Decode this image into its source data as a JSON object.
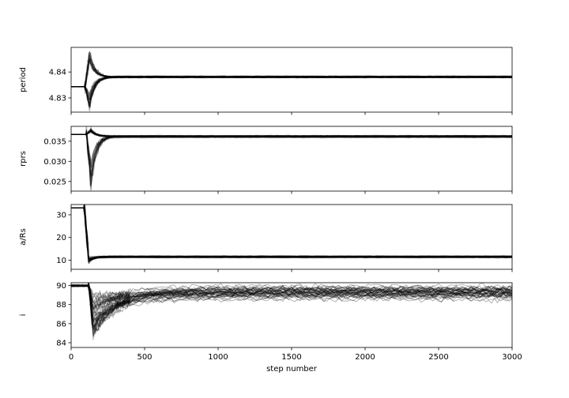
{
  "chart_data": {
    "type": "line",
    "title": "",
    "xlabel": "step number",
    "xlim": [
      0,
      3000
    ],
    "x_ticks": [
      0,
      500,
      1000,
      1500,
      2000,
      2500,
      3000
    ],
    "x_tick_labels": [
      "0",
      "500",
      "1000",
      "1500",
      "2000",
      "2500",
      "3000"
    ],
    "n_walkers": 40,
    "line_color": "#000000",
    "line_alpha": 0.3,
    "grid": false,
    "legend": false,
    "panels": [
      {
        "ylabel": "period",
        "ylim": [
          4.8245,
          4.8495
        ],
        "y_ticks": [
          4.83,
          4.84
        ],
        "y_tick_labels": [
          "4.83",
          "4.84"
        ],
        "initial": 4.8343,
        "final": 4.8381,
        "burn_in_step": 125,
        "burn_in_min": 4.8253,
        "burn_in_max": 4.8488,
        "final_spread": 0.0003
      },
      {
        "ylabel": "rprs",
        "ylim": [
          0.0226,
          0.0387
        ],
        "y_ticks": [
          0.025,
          0.03,
          0.035
        ],
        "y_tick_labels": [
          "0.025",
          "0.030",
          "0.035"
        ],
        "initial": 0.0367,
        "final": 0.0362,
        "burn_in_step": 135,
        "burn_in_min": 0.0238,
        "burn_in_max": 0.0383,
        "final_spread": 0.0002
      },
      {
        "ylabel": "a/Rs",
        "ylim": [
          6.0,
          34.5
        ],
        "y_ticks": [
          10,
          20,
          30
        ],
        "y_tick_labels": [
          "10",
          "20",
          "30"
        ],
        "initial": 33.0,
        "final": 11.5,
        "burn_in_step": 120,
        "burn_in_min": 7.8,
        "burn_in_max": 33.5,
        "final_spread": 0.35
      },
      {
        "ylabel": "i",
        "ylim": [
          83.5,
          90.3
        ],
        "y_ticks": [
          84,
          86,
          88,
          90
        ],
        "y_tick_labels": [
          "84",
          "86",
          "88",
          "90"
        ],
        "initial": 90.0,
        "final": 89.2,
        "burn_in_step": 150,
        "burn_in_min": 83.7,
        "burn_in_max": 90.0,
        "final_spread": 0.6
      }
    ]
  }
}
